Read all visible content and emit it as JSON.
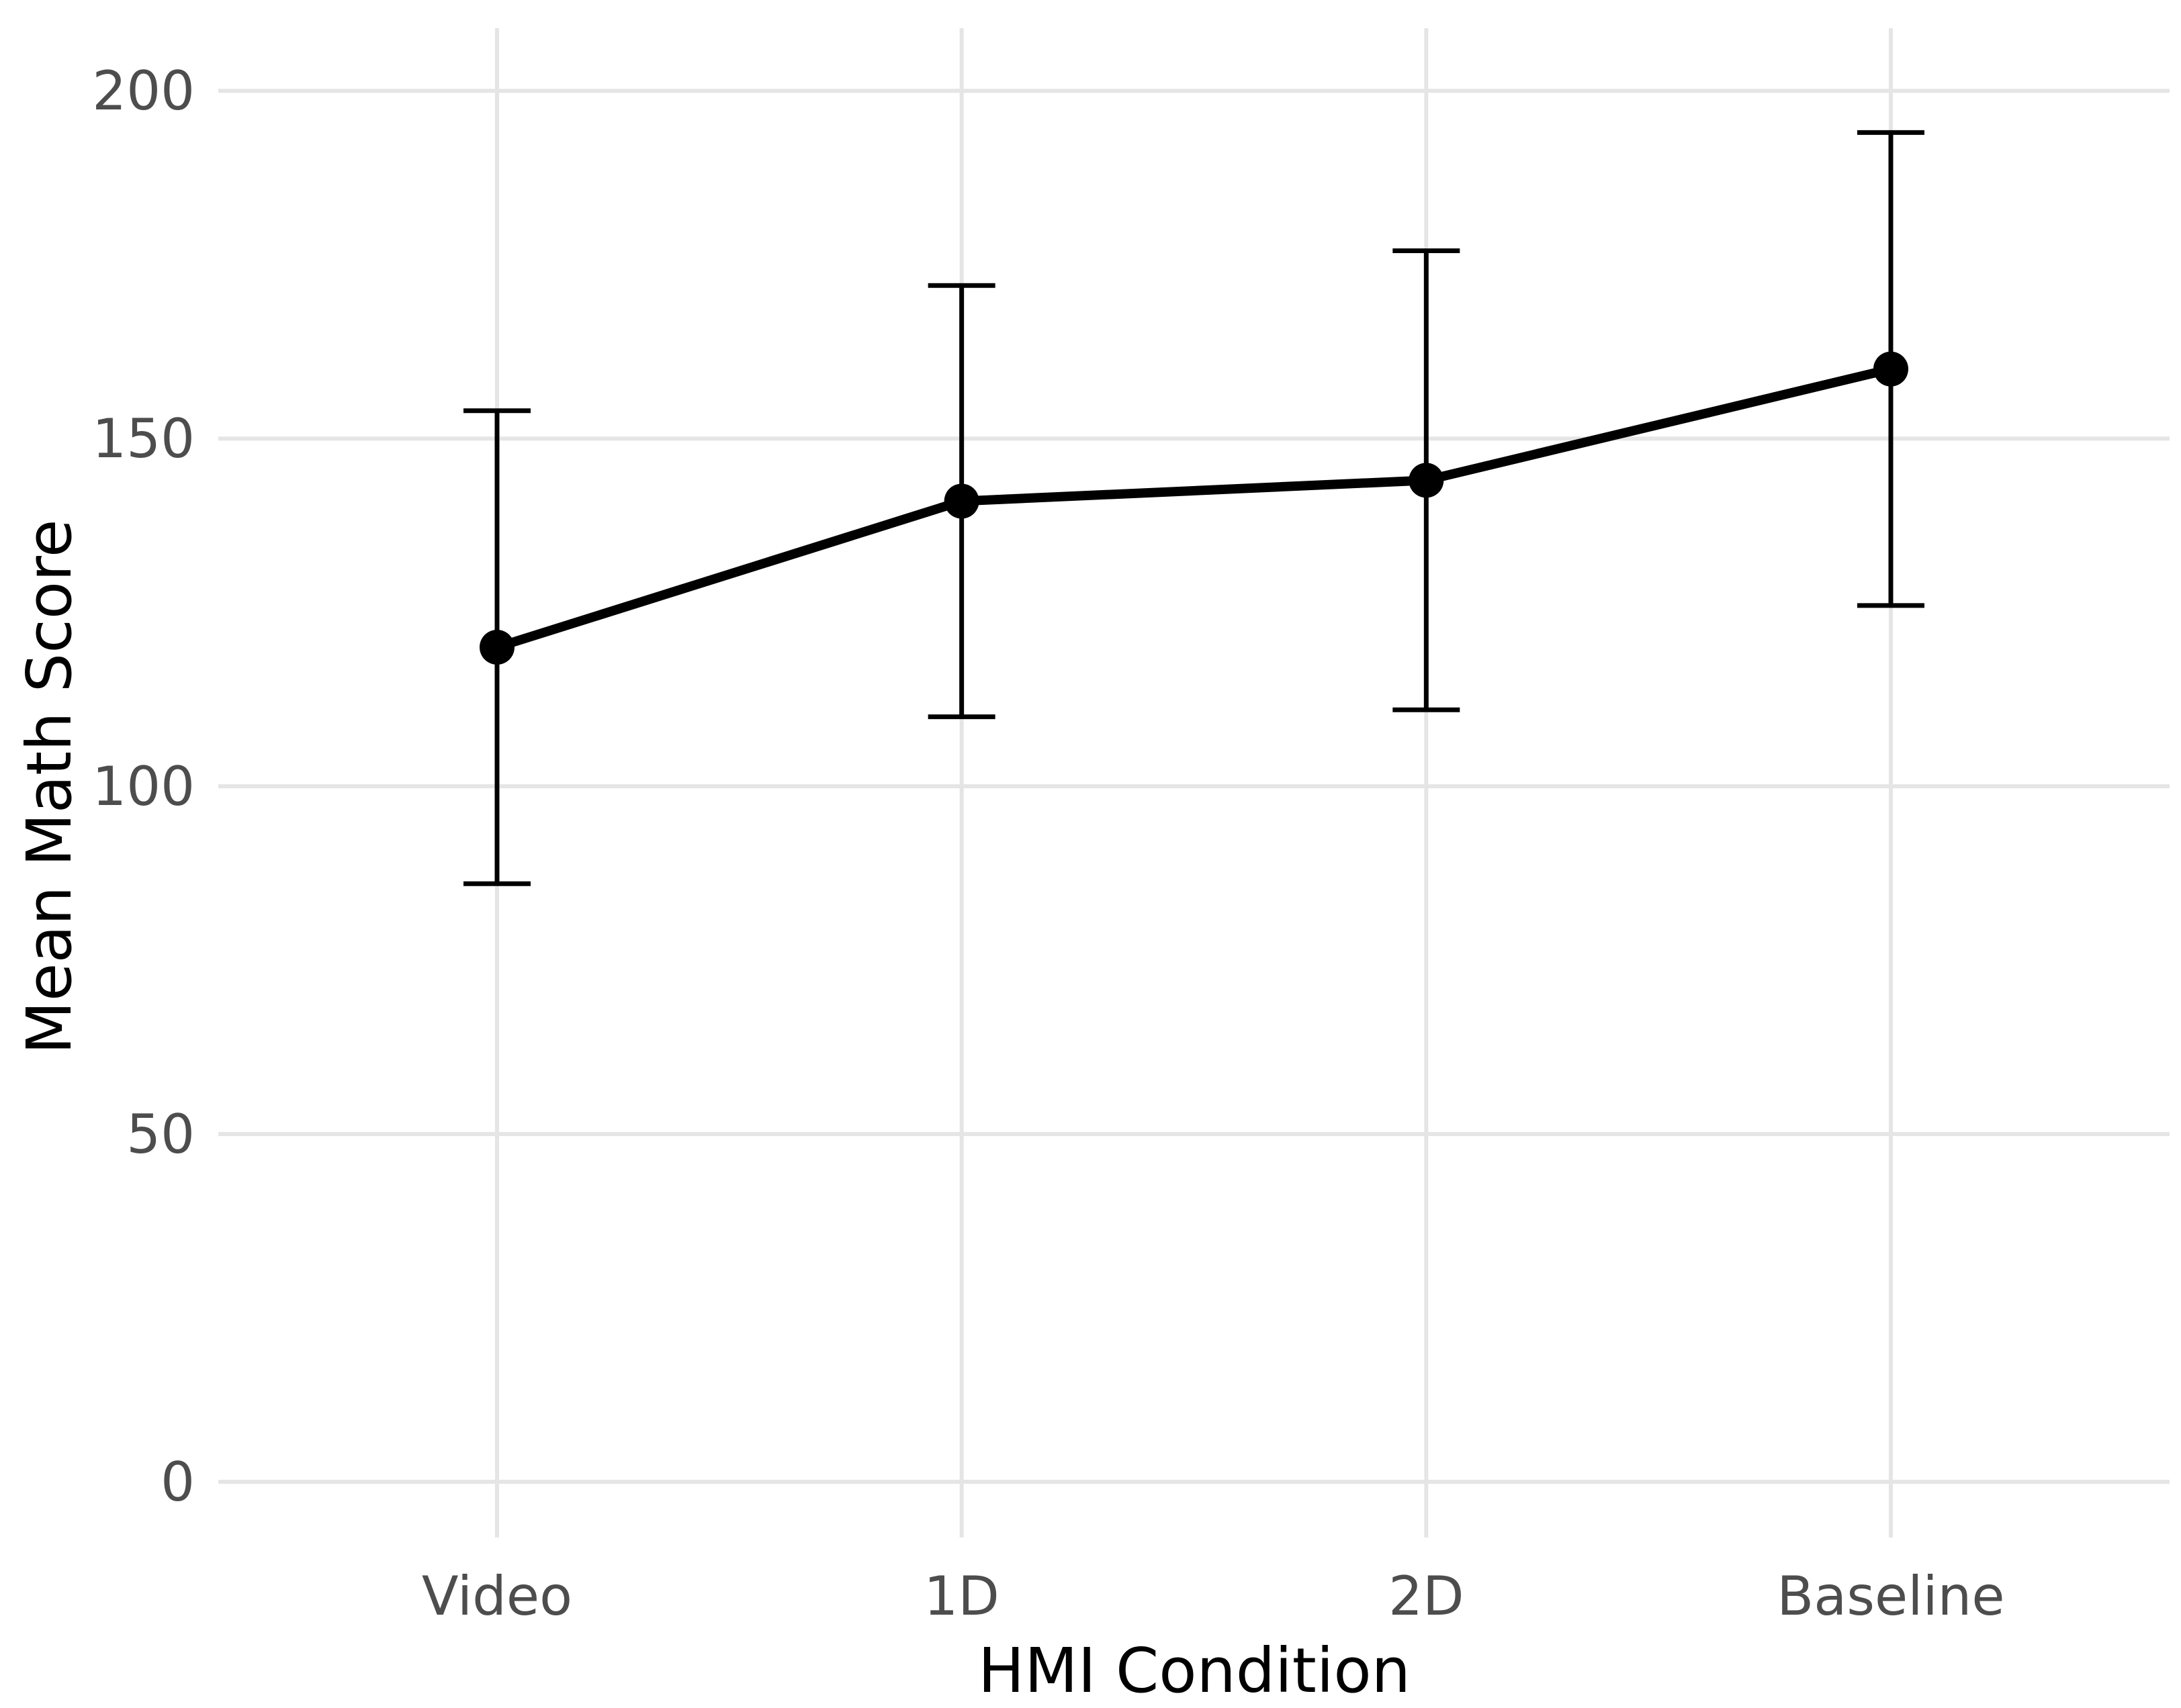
{
  "chart_data": {
    "type": "line",
    "title": "",
    "xlabel": "HMI Condition",
    "ylabel": "Mean Math Score",
    "categories": [
      "Video",
      "1D",
      "2D",
      "Baseline"
    ],
    "series": [
      {
        "values": [
          120,
          141,
          144,
          160
        ],
        "error_low": [
          86,
          110,
          111,
          126
        ],
        "error_high": [
          154,
          172,
          177,
          194
        ]
      }
    ],
    "ylim": [
      -8,
      209
    ],
    "yticks": [
      0,
      50,
      100,
      150,
      200
    ],
    "grid": true,
    "legend": "none",
    "colors": {
      "line": "#000000",
      "grid": "#e5e5e5",
      "tick_text": "#4d4d4d"
    }
  }
}
